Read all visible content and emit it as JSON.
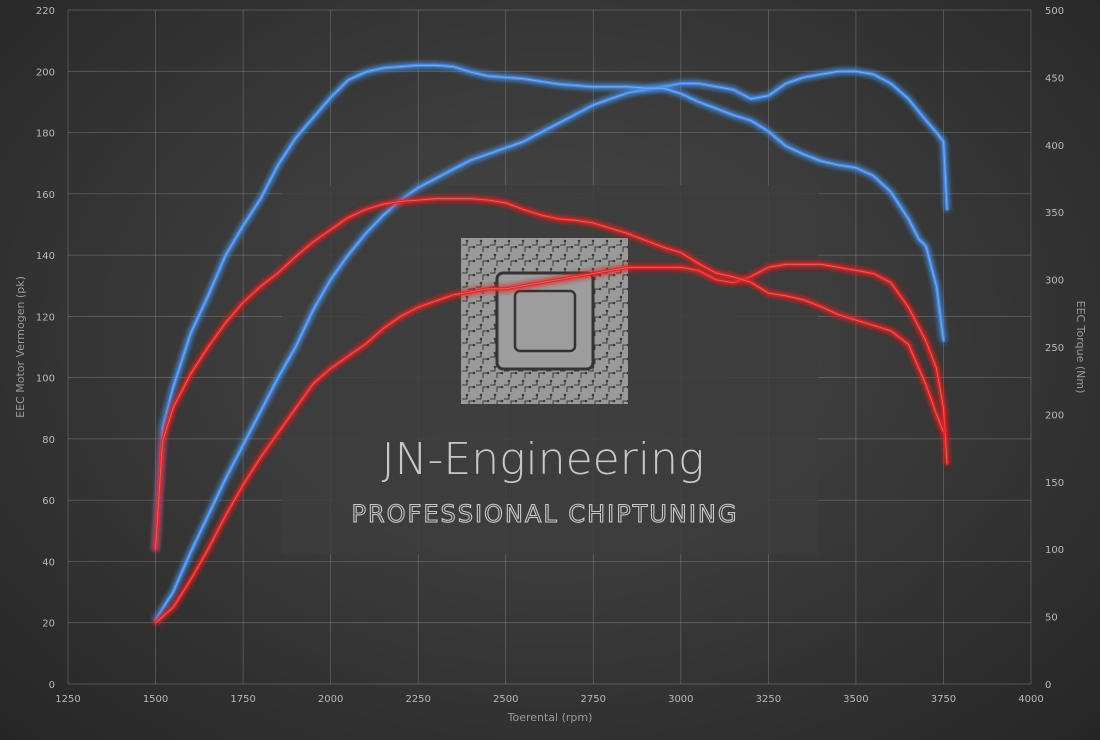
{
  "chart_data": {
    "type": "line",
    "xlabel": "Toerental (rpm)",
    "ylabel": "EEC Motor Vermogen (pk)",
    "y2label": "EEC Torque (Nm)",
    "xlim": [
      1250,
      4000
    ],
    "ylim": [
      0,
      220
    ],
    "y2lim": [
      0,
      500
    ],
    "xticks": [
      1250,
      1500,
      1750,
      2000,
      2250,
      2500,
      2750,
      3000,
      3250,
      3500,
      3750,
      4000
    ],
    "yticks": [
      0,
      20,
      40,
      60,
      80,
      100,
      120,
      140,
      160,
      180,
      200,
      220
    ],
    "y2ticks": [
      0,
      50,
      100,
      150,
      200,
      250,
      300,
      350,
      400,
      450,
      500
    ],
    "grid": true,
    "colors": {
      "blue": "#4a90e8",
      "red": "#e02626"
    },
    "series": [
      {
        "color": "blue",
        "axis": "left",
        "x": [
          1500,
          1550,
          1600,
          1650,
          1700,
          1750,
          1800,
          1850,
          1900,
          1950,
          2000,
          2050,
          2100,
          2150,
          2200,
          2250,
          2300,
          2350,
          2400,
          2450,
          2500,
          2550,
          2600,
          2650,
          2700,
          2750,
          2800,
          2850,
          2900,
          2950,
          3000,
          3050,
          3100,
          3150,
          3200,
          3250,
          3300,
          3350,
          3400,
          3450,
          3500,
          3550,
          3600,
          3650,
          3700,
          3730,
          3750,
          3760
        ],
        "y": [
          21,
          30,
          43,
          55,
          67,
          78,
          89,
          100,
          110,
          122,
          132,
          140,
          147,
          153,
          158,
          162,
          165,
          168,
          171,
          173,
          175,
          177,
          180,
          183,
          186,
          189,
          191,
          193,
          194,
          195,
          196,
          196,
          195,
          194,
          191,
          192,
          196,
          198,
          199,
          200,
          200,
          199,
          196,
          191,
          184,
          180,
          177,
          155
        ]
      },
      {
        "color": "blue",
        "axis": "right",
        "x": [
          1500,
          1520,
          1550,
          1600,
          1650,
          1700,
          1750,
          1800,
          1850,
          1900,
          1950,
          2000,
          2050,
          2100,
          2150,
          2200,
          2250,
          2300,
          2350,
          2400,
          2450,
          2500,
          2550,
          2600,
          2650,
          2700,
          2750,
          2800,
          2850,
          2900,
          2950,
          3000,
          3050,
          3100,
          3150,
          3200,
          3250,
          3300,
          3350,
          3400,
          3450,
          3500,
          3550,
          3600,
          3650,
          3680,
          3700,
          3730,
          3750
        ],
        "y": [
          100,
          190,
          220,
          260,
          288,
          318,
          340,
          360,
          385,
          405,
          420,
          435,
          448,
          454,
          457,
          458,
          459,
          459,
          458,
          454,
          451,
          450,
          449,
          447,
          445,
          444,
          443,
          443,
          443,
          442,
          442,
          438,
          432,
          427,
          422,
          418,
          410,
          399,
          393,
          388,
          385,
          383,
          377,
          365,
          345,
          330,
          325,
          295,
          255
        ]
      },
      {
        "color": "red",
        "axis": "left",
        "x": [
          1500,
          1550,
          1600,
          1650,
          1700,
          1750,
          1800,
          1850,
          1900,
          1950,
          2000,
          2050,
          2100,
          2150,
          2200,
          2250,
          2300,
          2350,
          2400,
          2450,
          2500,
          2550,
          2600,
          2650,
          2700,
          2750,
          2800,
          2850,
          2900,
          2950,
          3000,
          3050,
          3100,
          3150,
          3200,
          3250,
          3300,
          3350,
          3400,
          3450,
          3500,
          3550,
          3600,
          3650,
          3700,
          3730,
          3750,
          3760
        ],
        "y": [
          20,
          25,
          34,
          44,
          55,
          65,
          74,
          82,
          90,
          98,
          103,
          107,
          111,
          116,
          120,
          123,
          125,
          127,
          128,
          129,
          129,
          130,
          131,
          132,
          133,
          134,
          135,
          136,
          136,
          136,
          136,
          135,
          132,
          131,
          133,
          136,
          137,
          137,
          137,
          136,
          135,
          134,
          131,
          123,
          112,
          103,
          90,
          72
        ]
      },
      {
        "color": "red",
        "axis": "right",
        "x": [
          1500,
          1520,
          1550,
          1600,
          1650,
          1700,
          1750,
          1800,
          1850,
          1900,
          1950,
          2000,
          2050,
          2100,
          2150,
          2200,
          2250,
          2300,
          2350,
          2400,
          2450,
          2500,
          2550,
          2600,
          2650,
          2700,
          2750,
          2800,
          2850,
          2900,
          2950,
          3000,
          3050,
          3100,
          3150,
          3200,
          3250,
          3300,
          3350,
          3400,
          3450,
          3500,
          3550,
          3600,
          3650,
          3700,
          3730,
          3750
        ],
        "y": [
          100,
          180,
          205,
          230,
          250,
          268,
          283,
          295,
          305,
          317,
          328,
          337,
          346,
          352,
          356,
          358,
          359,
          360,
          360,
          360,
          359,
          357,
          352,
          348,
          345,
          344,
          342,
          338,
          334,
          329,
          324,
          320,
          312,
          305,
          302,
          298,
          290,
          288,
          285,
          280,
          274,
          270,
          266,
          262,
          252,
          222,
          200,
          187
        ]
      }
    ]
  },
  "logo": {
    "title": "JN-Engineering",
    "subtitle": "PROFESSIONAL CHIPTUNING"
  }
}
